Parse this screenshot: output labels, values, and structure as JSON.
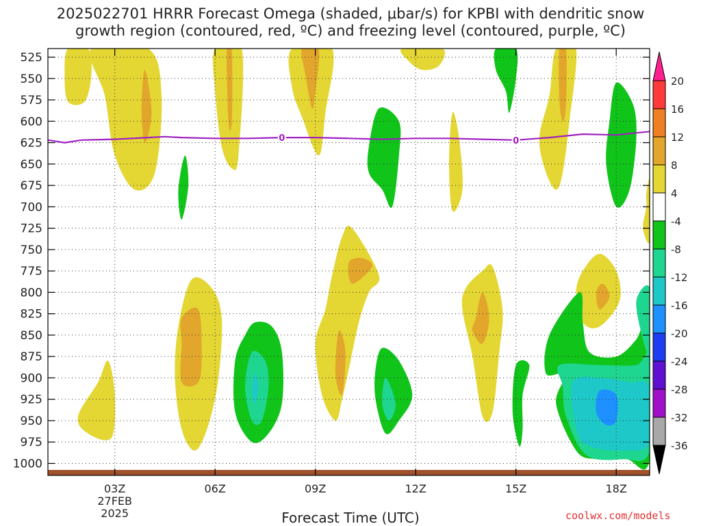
{
  "chart_data": {
    "type": "time-height contour",
    "title_line1": "2025022701 HRRR Forecast Omega (shaded, μbar/s) for KPBI with dendritic snow",
    "title_line2": "growth region (contoured, red, ºC) and freezing level (contoured, purple, ºC)",
    "xlabel": "Forecast Time (UTC)",
    "source": "coolwx.com/models",
    "x_ticks": [
      {
        "hour": 3,
        "label": "03Z"
      },
      {
        "hour": 6,
        "label": "06Z"
      },
      {
        "hour": 9,
        "label": "09Z"
      },
      {
        "hour": 12,
        "label": "12Z"
      },
      {
        "hour": 15,
        "label": "15Z"
      },
      {
        "hour": 18,
        "label": "18Z"
      }
    ],
    "date_label": [
      "27FEB",
      "2025"
    ],
    "xlim": [
      1,
      19
    ],
    "y_ticks": [
      525,
      550,
      575,
      600,
      625,
      650,
      675,
      700,
      725,
      750,
      775,
      800,
      825,
      850,
      875,
      900,
      925,
      950,
      975,
      1000
    ],
    "ylim": [
      1014,
      515
    ],
    "colorbar": {
      "labels": [
        "20",
        "16",
        "12",
        "8",
        "4",
        "-4",
        "-8",
        "-12",
        "-16",
        "-20",
        "-24",
        "-28",
        "-32",
        "-36"
      ],
      "colors": [
        "#ff1f8f",
        "#ff3a3a",
        "#f07f24",
        "#e1a62b",
        "#e4d633",
        "#ffffff",
        "#10c41a",
        "#1ed68f",
        "#1ec8c8",
        "#1e90ff",
        "#1e3cf0",
        "#6010d0",
        "#a010c8",
        "#a8a8a8",
        "#000000"
      ]
    },
    "freezing_level": {
      "label": "0",
      "color": "#a020c0",
      "points": [
        [
          1,
          622
        ],
        [
          1.5,
          625
        ],
        [
          2,
          622
        ],
        [
          3,
          621
        ],
        [
          4,
          619
        ],
        [
          4.5,
          618
        ],
        [
          5,
          619
        ],
        [
          6,
          620
        ],
        [
          7,
          620
        ],
        [
          8,
          619
        ],
        [
          9,
          619
        ],
        [
          10,
          620
        ],
        [
          11,
          621
        ],
        [
          12,
          620
        ],
        [
          13,
          620
        ],
        [
          14,
          621
        ],
        [
          15,
          622
        ],
        [
          16,
          619
        ],
        [
          17,
          615
        ],
        [
          18,
          616
        ],
        [
          19,
          612
        ]
      ],
      "label_points": [
        [
          8,
          619
        ],
        [
          15,
          622
        ]
      ]
    },
    "omega_regions": [
      {
        "value": 4,
        "points": [
          [
            1.6,
            515
          ],
          [
            2.2,
            515
          ],
          [
            2.3,
            545
          ],
          [
            2.1,
            577
          ],
          [
            1.6,
            577
          ],
          [
            1.5,
            545
          ]
        ]
      },
      {
        "value": 4,
        "points": [
          [
            2.3,
            515
          ],
          [
            4.0,
            515
          ],
          [
            4.4,
            570
          ],
          [
            4.2,
            660
          ],
          [
            3.6,
            680
          ],
          [
            3.0,
            640
          ],
          [
            2.7,
            570
          ]
        ]
      },
      {
        "value": 8,
        "points": [
          [
            3.9,
            540
          ],
          [
            4.1,
            590
          ],
          [
            3.9,
            625
          ],
          [
            3.8,
            585
          ]
        ]
      },
      {
        "value": 4,
        "points": [
          [
            6.0,
            515
          ],
          [
            6.8,
            515
          ],
          [
            6.7,
            640
          ],
          [
            6.5,
            655
          ],
          [
            6.2,
            630
          ],
          [
            6.0,
            565
          ]
        ]
      },
      {
        "value": 8,
        "points": [
          [
            6.35,
            515
          ],
          [
            6.5,
            515
          ],
          [
            6.5,
            600
          ],
          [
            6.4,
            600
          ]
        ]
      },
      {
        "value": 4,
        "points": [
          [
            8.3,
            515
          ],
          [
            9.5,
            515
          ],
          [
            9.3,
            590
          ],
          [
            9.1,
            640
          ],
          [
            8.6,
            595
          ],
          [
            8.3,
            560
          ]
        ]
      },
      {
        "value": 8,
        "points": [
          [
            8.6,
            515
          ],
          [
            9.1,
            515
          ],
          [
            9.0,
            565
          ],
          [
            8.9,
            585
          ],
          [
            8.7,
            545
          ]
        ]
      },
      {
        "value": 4,
        "points": [
          [
            11.6,
            515
          ],
          [
            12.8,
            515
          ],
          [
            12.7,
            535
          ],
          [
            12.2,
            540
          ],
          [
            11.8,
            530
          ]
        ]
      },
      {
        "value": 4,
        "points": [
          [
            16.2,
            515
          ],
          [
            16.8,
            515
          ],
          [
            16.6,
            600
          ],
          [
            16.4,
            660
          ],
          [
            16.2,
            680
          ],
          [
            15.9,
            660
          ],
          [
            15.7,
            620
          ],
          [
            16.0,
            570
          ]
        ]
      },
      {
        "value": 8,
        "points": [
          [
            16.3,
            515
          ],
          [
            16.5,
            515
          ],
          [
            16.5,
            580
          ],
          [
            16.4,
            600
          ],
          [
            16.3,
            575
          ]
        ]
      },
      {
        "value": 4,
        "points": [
          [
            13.1,
            590
          ],
          [
            13.3,
            620
          ],
          [
            13.4,
            680
          ],
          [
            13.1,
            705
          ],
          [
            13.0,
            650
          ]
        ]
      },
      {
        "value": 4,
        "points": [
          [
            18.9,
            685
          ],
          [
            19.0,
            670
          ],
          [
            19.0,
            740
          ],
          [
            18.8,
            725
          ],
          [
            18.9,
            700
          ]
        ]
      },
      {
        "value": -4,
        "points": [
          [
            14.4,
            515
          ],
          [
            15.0,
            515
          ],
          [
            15.0,
            550
          ],
          [
            14.8,
            590
          ],
          [
            14.7,
            565
          ],
          [
            14.4,
            540
          ]
        ]
      },
      {
        "value": -4,
        "points": [
          [
            10.9,
            585
          ],
          [
            11.5,
            600
          ],
          [
            11.5,
            640
          ],
          [
            11.3,
            700
          ],
          [
            11.0,
            680
          ],
          [
            10.6,
            660
          ],
          [
            10.6,
            630
          ]
        ]
      },
      {
        "value": -4,
        "points": [
          [
            18.0,
            555
          ],
          [
            18.5,
            580
          ],
          [
            18.6,
            620
          ],
          [
            18.4,
            680
          ],
          [
            18.0,
            700
          ],
          [
            17.7,
            650
          ],
          [
            17.8,
            600
          ]
        ]
      },
      {
        "value": -4,
        "points": [
          [
            5.1,
            640
          ],
          [
            5.2,
            675
          ],
          [
            5.0,
            715
          ],
          [
            4.9,
            680
          ]
        ]
      },
      {
        "value": 4,
        "points": [
          [
            5.3,
            785
          ],
          [
            5.9,
            795
          ],
          [
            6.2,
            830
          ],
          [
            6.1,
            900
          ],
          [
            5.8,
            955
          ],
          [
            5.4,
            985
          ],
          [
            5.0,
            960
          ],
          [
            4.8,
            900
          ],
          [
            4.9,
            840
          ]
        ]
      },
      {
        "value": 8,
        "points": [
          [
            5.0,
            830
          ],
          [
            5.5,
            820
          ],
          [
            5.6,
            870
          ],
          [
            5.5,
            905
          ],
          [
            5.0,
            905
          ],
          [
            5.0,
            860
          ]
        ]
      },
      {
        "value": 4,
        "points": [
          [
            9.5,
            780
          ],
          [
            9.8,
            735
          ],
          [
            10.1,
            725
          ],
          [
            10.9,
            780
          ],
          [
            10.6,
            800
          ],
          [
            10.3,
            835
          ],
          [
            10.0,
            890
          ],
          [
            9.8,
            925
          ],
          [
            9.6,
            950
          ],
          [
            9.2,
            920
          ],
          [
            9.0,
            860
          ],
          [
            9.3,
            820
          ]
        ]
      },
      {
        "value": 8,
        "points": [
          [
            10.0,
            765
          ],
          [
            10.4,
            760
          ],
          [
            10.7,
            770
          ],
          [
            10.1,
            790
          ]
        ]
      },
      {
        "value": 8,
        "points": [
          [
            9.7,
            845
          ],
          [
            9.9,
            870
          ],
          [
            9.8,
            920
          ],
          [
            9.6,
            895
          ]
        ]
      },
      {
        "value": 4,
        "points": [
          [
            13.5,
            795
          ],
          [
            14.0,
            775
          ],
          [
            14.3,
            770
          ],
          [
            14.6,
            820
          ],
          [
            14.5,
            870
          ],
          [
            14.3,
            940
          ],
          [
            14.0,
            945
          ],
          [
            13.7,
            875
          ],
          [
            13.4,
            820
          ]
        ]
      },
      {
        "value": 8,
        "points": [
          [
            13.8,
            830
          ],
          [
            14.0,
            800
          ],
          [
            14.2,
            830
          ],
          [
            14.0,
            860
          ],
          [
            13.7,
            845
          ]
        ]
      },
      {
        "value": 4,
        "points": [
          [
            17.0,
            775
          ],
          [
            17.5,
            755
          ],
          [
            18.0,
            775
          ],
          [
            18.1,
            810
          ],
          [
            17.5,
            840
          ],
          [
            17.0,
            835
          ],
          [
            16.8,
            800
          ]
        ]
      },
      {
        "value": 8,
        "points": [
          [
            17.4,
            800
          ],
          [
            17.6,
            790
          ],
          [
            17.8,
            805
          ],
          [
            17.5,
            820
          ]
        ]
      },
      {
        "value": 4,
        "points": [
          [
            1.9,
            945
          ],
          [
            2.5,
            905
          ],
          [
            2.8,
            880
          ],
          [
            3.0,
            920
          ],
          [
            2.9,
            970
          ],
          [
            2.2,
            965
          ]
        ]
      },
      {
        "value": -4,
        "points": [
          [
            7.2,
            835
          ],
          [
            7.7,
            840
          ],
          [
            8.0,
            870
          ],
          [
            8.0,
            930
          ],
          [
            7.6,
            965
          ],
          [
            7.1,
            975
          ],
          [
            6.6,
            940
          ],
          [
            6.6,
            880
          ],
          [
            6.9,
            850
          ]
        ]
      },
      {
        "value": -8,
        "points": [
          [
            7.1,
            870
          ],
          [
            7.5,
            880
          ],
          [
            7.6,
            910
          ],
          [
            7.4,
            950
          ],
          [
            7.1,
            950
          ],
          [
            6.9,
            910
          ]
        ]
      },
      {
        "value": -12,
        "points": [
          [
            7.2,
            895
          ],
          [
            7.3,
            910
          ],
          [
            7.2,
            930
          ],
          [
            7.1,
            915
          ]
        ]
      },
      {
        "value": -4,
        "points": [
          [
            11.0,
            865
          ],
          [
            11.5,
            880
          ],
          [
            11.9,
            920
          ],
          [
            11.5,
            950
          ],
          [
            11.1,
            965
          ],
          [
            10.8,
            925
          ],
          [
            10.8,
            890
          ]
        ]
      },
      {
        "value": -8,
        "points": [
          [
            11.1,
            900
          ],
          [
            11.4,
            930
          ],
          [
            11.2,
            950
          ],
          [
            11.0,
            930
          ]
        ]
      },
      {
        "value": -4,
        "points": [
          [
            15.0,
            885
          ],
          [
            15.4,
            885
          ],
          [
            15.2,
            920
          ],
          [
            15.2,
            960
          ],
          [
            15.1,
            980
          ],
          [
            14.9,
            940
          ]
        ]
      },
      {
        "value": -4,
        "points": [
          [
            16.0,
            850
          ],
          [
            16.9,
            800
          ],
          [
            17.0,
            835
          ],
          [
            17.2,
            870
          ],
          [
            18.0,
            875
          ],
          [
            18.6,
            855
          ],
          [
            19.0,
            830
          ],
          [
            19.0,
            995
          ],
          [
            18.3,
            995
          ],
          [
            17.4,
            995
          ],
          [
            16.8,
            985
          ],
          [
            16.2,
            930
          ],
          [
            16.5,
            895
          ],
          [
            15.9,
            895
          ]
        ]
      },
      {
        "value": -8,
        "points": [
          [
            16.3,
            885
          ],
          [
            17.5,
            885
          ],
          [
            18.6,
            885
          ],
          [
            19.0,
            875
          ],
          [
            19.0,
            985
          ],
          [
            18.2,
            995
          ],
          [
            17.1,
            990
          ],
          [
            16.5,
            945
          ],
          [
            16.4,
            910
          ]
        ]
      },
      {
        "value": -12,
        "points": [
          [
            16.7,
            905
          ],
          [
            17.5,
            900
          ],
          [
            18.4,
            905
          ],
          [
            19.0,
            910
          ],
          [
            19.0,
            975
          ],
          [
            18.3,
            985
          ],
          [
            17.2,
            980
          ],
          [
            16.8,
            960
          ]
        ]
      },
      {
        "value": -16,
        "points": [
          [
            17.5,
            915
          ],
          [
            18.0,
            920
          ],
          [
            18.0,
            950
          ],
          [
            17.7,
            955
          ],
          [
            17.4,
            940
          ]
        ]
      },
      {
        "value": -8,
        "points": [
          [
            18.6,
            810
          ],
          [
            19.0,
            795
          ],
          [
            19.0,
            870
          ],
          [
            18.8,
            855
          ]
        ]
      }
    ]
  }
}
